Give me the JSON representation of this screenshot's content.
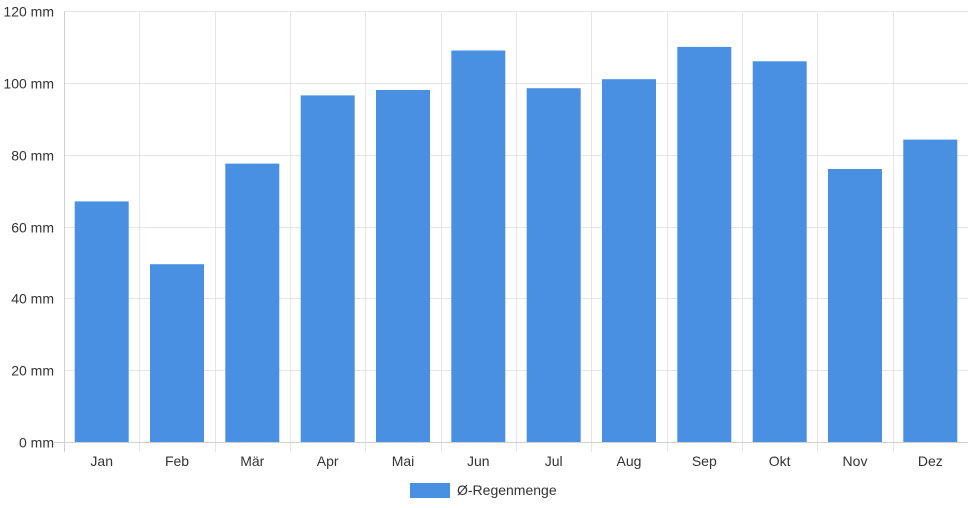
{
  "chart_data": {
    "type": "bar",
    "categories": [
      "Jan",
      "Feb",
      "Mär",
      "Apr",
      "Mai",
      "Jun",
      "Jul",
      "Aug",
      "Sep",
      "Okt",
      "Nov",
      "Dez"
    ],
    "series": [
      {
        "name": "Ø-Regenmenge",
        "color": "#4a90e2",
        "values": [
          67,
          49.5,
          77.5,
          96.5,
          98,
          109,
          98.5,
          101,
          110,
          106,
          76,
          84.2
        ]
      }
    ],
    "ylim": [
      0,
      120
    ],
    "yticks": [
      0,
      20,
      40,
      60,
      80,
      100,
      120
    ],
    "ytick_labels": [
      "0 mm",
      "20 mm",
      "40 mm",
      "60 mm",
      "80 mm",
      "100 mm",
      "120 mm"
    ],
    "grid": true,
    "legend_position": "bottom-center"
  }
}
